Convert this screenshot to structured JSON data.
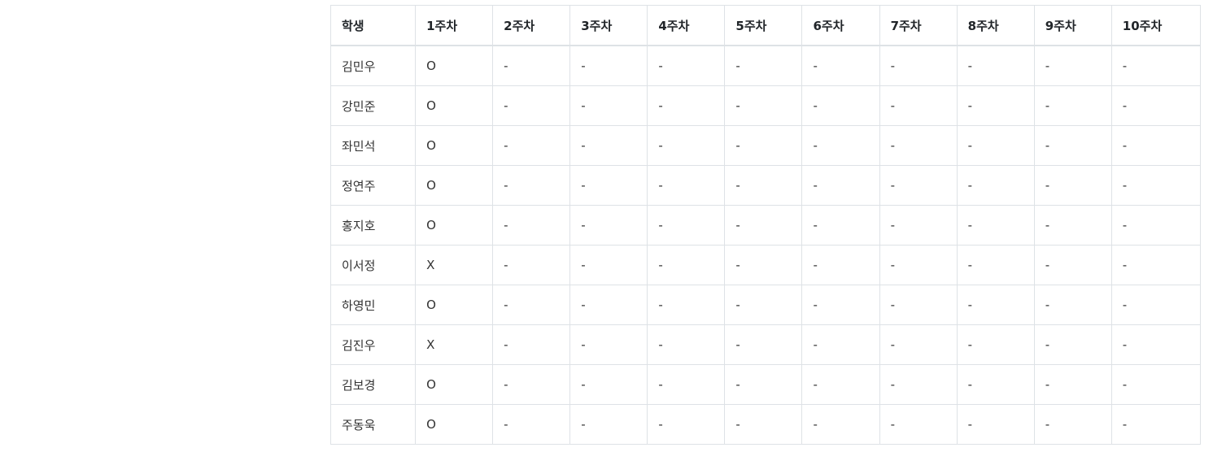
{
  "table": {
    "headers": [
      "학생",
      "1주차",
      "2주차",
      "3주차",
      "4주차",
      "5주차",
      "6주차",
      "7주차",
      "8주차",
      "9주차",
      "10주차"
    ],
    "rows": [
      [
        "김민우",
        "O",
        "-",
        "-",
        "-",
        "-",
        "-",
        "-",
        "-",
        "-",
        "-"
      ],
      [
        "강민준",
        "O",
        "-",
        "-",
        "-",
        "-",
        "-",
        "-",
        "-",
        "-",
        "-"
      ],
      [
        "좌민석",
        "O",
        "-",
        "-",
        "-",
        "-",
        "-",
        "-",
        "-",
        "-",
        "-"
      ],
      [
        "정연주",
        "O",
        "-",
        "-",
        "-",
        "-",
        "-",
        "-",
        "-",
        "-",
        "-"
      ],
      [
        "홍지호",
        "O",
        "-",
        "-",
        "-",
        "-",
        "-",
        "-",
        "-",
        "-",
        "-"
      ],
      [
        "이서정",
        "X",
        "-",
        "-",
        "-",
        "-",
        "-",
        "-",
        "-",
        "-",
        "-"
      ],
      [
        "하영민",
        "O",
        "-",
        "-",
        "-",
        "-",
        "-",
        "-",
        "-",
        "-",
        "-"
      ],
      [
        "김진우",
        "X",
        "-",
        "-",
        "-",
        "-",
        "-",
        "-",
        "-",
        "-",
        "-"
      ],
      [
        "김보경",
        "O",
        "-",
        "-",
        "-",
        "-",
        "-",
        "-",
        "-",
        "-",
        "-"
      ],
      [
        "주동욱",
        "O",
        "-",
        "-",
        "-",
        "-",
        "-",
        "-",
        "-",
        "-",
        "-"
      ]
    ]
  }
}
